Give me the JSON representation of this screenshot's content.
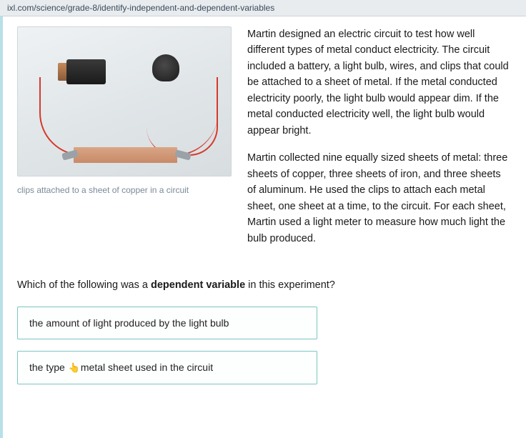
{
  "url": "ixl.com/science/grade-8/identify-independent-and-dependent-variables",
  "figure": {
    "caption": "clips attached to a sheet of copper in a circuit"
  },
  "passage": {
    "p1": "Martin designed an electric circuit to test how well different types of metal conduct electricity. The circuit included a battery, a light bulb, wires, and clips that could be attached to a sheet of metal. If the metal conducted electricity poorly, the light bulb would appear dim. If the metal conducted electricity well, the light bulb would appear bright.",
    "p2": "Martin collected nine equally sized sheets of metal: three sheets of copper, three sheets of iron, and three sheets of aluminum. He used the clips to attach each metal sheet, one sheet at a time, to the circuit. For each sheet, Martin used a light meter to measure how much light the bulb produced."
  },
  "question": {
    "prefix": "Which of the following was a ",
    "bold": "dependent variable",
    "suffix": " in this experiment?"
  },
  "answers": {
    "a1": "the amount of light produced by the light bulb",
    "a2_pre": "the type ",
    "a2_post": "metal sheet used in the circuit"
  },
  "colors": {
    "accent": "#7ac7c0",
    "wire": "#d63a2a",
    "copper": "#c88a68"
  }
}
